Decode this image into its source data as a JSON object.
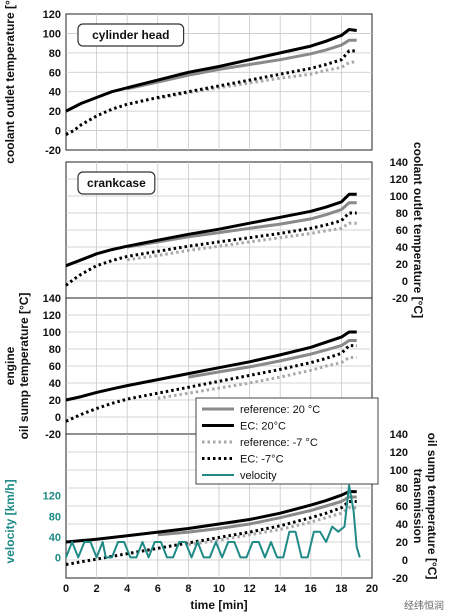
{
  "chart_data": {
    "type": "line",
    "xlabel": "time [min]",
    "xlim": [
      0,
      20
    ],
    "xticks": [
      0,
      2,
      4,
      6,
      8,
      10,
      12,
      14,
      16,
      18,
      20
    ],
    "legend": {
      "placement": "inside-right",
      "entries": [
        "reference: 20 °C",
        "EC: 20°C",
        "reference: -7 °C",
        "EC: -7°C",
        "velocity"
      ]
    },
    "panels": [
      {
        "title": "cylinder head",
        "ylabel": "coolant outlet temperature [°",
        "ylabel_side": "left",
        "ylim": [
          -20,
          120
        ],
        "yticks": [
          -20,
          0,
          20,
          40,
          60,
          80,
          100,
          120
        ],
        "series": [
          {
            "name": "EC: 20°C",
            "style": "black-solid",
            "x": [
              0,
              1,
              2,
              3,
              4,
              6,
              8,
              10,
              12,
              14,
              16,
              17,
              18,
              18.5,
              19
            ],
            "y": [
              20,
              28,
              34,
              40,
              44,
              52,
              60,
              66,
              73,
              80,
              87,
              92,
              98,
              104,
              103
            ]
          },
          {
            "name": "reference: 20 °C",
            "style": "gray-solid",
            "x": [
              4,
              6,
              8,
              10,
              12,
              14,
              16,
              17,
              18,
              18.5,
              19
            ],
            "y": [
              43,
              50,
              57,
              63,
              68,
              73,
              79,
              83,
              88,
              93,
              93
            ]
          },
          {
            "name": "EC: -7°C",
            "style": "black-dotted",
            "x": [
              0,
              0.5,
              1,
              2,
              3,
              4,
              6,
              8,
              10,
              12,
              14,
              16,
              17,
              18,
              18.5,
              19
            ],
            "y": [
              -4,
              0,
              6,
              15,
              22,
              27,
              34,
              40,
              46,
              52,
              58,
              64,
              68,
              73,
              82,
              82
            ]
          },
          {
            "name": "reference: -7 °C",
            "style": "gray-dotted",
            "x": [
              6,
              8,
              10,
              12,
              14,
              16,
              17,
              18,
              18.5,
              19
            ],
            "y": [
              33,
              39,
              44,
              49,
              54,
              58,
              62,
              65,
              70,
              71
            ]
          }
        ]
      },
      {
        "title": "crankcase",
        "ylabel": "coolant outlet temperature [°C]",
        "ylabel_side": "right",
        "ylim": [
          -20,
          140
        ],
        "yticks": [
          -20,
          0,
          20,
          40,
          60,
          80,
          100,
          120,
          140
        ],
        "series": [
          {
            "name": "EC: 20°C",
            "style": "black-solid",
            "x": [
              0,
              1,
              2,
              3,
              4,
              6,
              8,
              10,
              12,
              14,
              16,
              17,
              18,
              18.5,
              19
            ],
            "y": [
              18,
              25,
              32,
              37,
              41,
              48,
              55,
              61,
              68,
              75,
              82,
              87,
              93,
              102,
              102
            ]
          },
          {
            "name": "reference: 20 °C",
            "style": "gray-solid",
            "x": [
              4,
              6,
              8,
              10,
              12,
              14,
              16,
              17,
              18,
              18.5,
              19
            ],
            "y": [
              40,
              46,
              52,
              57,
              62,
              67,
              73,
              78,
              84,
              92,
              92
            ]
          },
          {
            "name": "EC: -7°C",
            "style": "black-dotted",
            "x": [
              0,
              0.5,
              1,
              2,
              3,
              4,
              6,
              8,
              10,
              12,
              14,
              16,
              17,
              18,
              18.5,
              19
            ],
            "y": [
              -5,
              2,
              8,
              18,
              24,
              29,
              35,
              41,
              46,
              51,
              56,
              62,
              66,
              71,
              80,
              80
            ]
          },
          {
            "name": "reference: -7 °C",
            "style": "gray-dotted",
            "x": [
              4,
              6,
              8,
              10,
              12,
              14,
              16,
              17,
              18,
              18.5,
              19
            ],
            "y": [
              25,
              30,
              36,
              41,
              46,
              51,
              56,
              59,
              62,
              68,
              68
            ]
          }
        ]
      },
      {
        "title": "",
        "ylabel": "engine\noil sump temperature [°C]",
        "ylabel_side": "left",
        "ylim": [
          -20,
          140
        ],
        "yticks": [
          -20,
          0,
          20,
          40,
          60,
          80,
          100,
          120,
          140
        ],
        "series": [
          {
            "name": "EC: 20°C",
            "style": "black-solid",
            "x": [
              0,
              1,
              2,
              3,
              4,
              6,
              8,
              10,
              12,
              14,
              16,
              17,
              18,
              18.5,
              19
            ],
            "y": [
              20,
              24,
              29,
              33,
              37,
              44,
              51,
              58,
              65,
              73,
              82,
              88,
              94,
              100,
              100
            ]
          },
          {
            "name": "reference: 20 °C",
            "style": "gray-solid",
            "x": [
              8,
              10,
              12,
              14,
              16,
              17,
              18,
              18.5,
              19
            ],
            "y": [
              47,
              53,
              59,
              66,
              74,
              79,
              84,
              90,
              90
            ]
          },
          {
            "name": "EC: -7°C",
            "style": "black-dotted",
            "x": [
              0,
              1,
              2,
              3,
              4,
              6,
              8,
              10,
              12,
              14,
              16,
              17,
              18,
              18.5,
              19
            ],
            "y": [
              -5,
              3,
              10,
              16,
              21,
              28,
              35,
              42,
              49,
              56,
              64,
              69,
              75,
              84,
              84
            ]
          },
          {
            "name": "reference: -7 °C",
            "style": "gray-dotted",
            "x": [
              6,
              8,
              10,
              12,
              14,
              16,
              17,
              18,
              18.5,
              19
            ],
            "y": [
              22,
              28,
              34,
              40,
              47,
              55,
              60,
              64,
              70,
              70
            ]
          }
        ]
      },
      {
        "title": "",
        "ylabel": "transmission\noil sump temperature [°C]",
        "ylabel_side": "right",
        "ylim": [
          -20,
          140
        ],
        "yticks": [
          -20,
          0,
          20,
          40,
          60,
          80,
          100,
          120,
          140
        ],
        "series": [
          {
            "name": "EC: 20°C",
            "style": "black-solid",
            "x": [
              0,
              2,
              4,
              6,
              8,
              10,
              12,
              14,
              16,
              17,
              18,
              18.5,
              19
            ],
            "y": [
              20,
              23,
              27,
              31,
              35,
              40,
              45,
              52,
              61,
              66,
              72,
              76,
              76
            ]
          },
          {
            "name": "reference: 20 °C",
            "style": "gray-solid",
            "x": [
              6,
              8,
              10,
              12,
              14,
              16,
              17,
              18,
              18.5,
              19
            ],
            "y": [
              28,
              31,
              35,
              40,
              47,
              55,
              60,
              65,
              70,
              70
            ]
          },
          {
            "name": "EC: -7°C",
            "style": "black-dotted",
            "x": [
              0,
              2,
              4,
              6,
              8,
              10,
              12,
              14,
              16,
              17,
              18,
              18.5,
              19
            ],
            "y": [
              -5,
              1,
              7,
              13,
              19,
              25,
              31,
              38,
              47,
              52,
              58,
              65,
              65
            ]
          },
          {
            "name": "reference: -7 °C",
            "style": "gray-dotted",
            "x": [
              8,
              10,
              12,
              14,
              16,
              17,
              18,
              18.5,
              19
            ],
            "y": [
              17,
              22,
              28,
              34,
              42,
              47,
              52,
              58,
              58
            ]
          }
        ],
        "secondary_axis": {
          "ylabel": "velocity [km/h]",
          "side": "left",
          "ylim": [
            -40,
            240
          ],
          "yticks": [
            0,
            40,
            80,
            120
          ],
          "series": [
            {
              "name": "velocity",
              "style": "teal-solid",
              "x": [
                0,
                0.4,
                0.8,
                1.2,
                1.6,
                2.0,
                2.4,
                2.6,
                3.0,
                3.4,
                3.8,
                4.2,
                4.6,
                5.0,
                5.4,
                5.8,
                6.2,
                6.6,
                7.0,
                7.4,
                7.8,
                8.2,
                8.6,
                9.0,
                9.4,
                9.8,
                10.2,
                10.6,
                11.0,
                11.4,
                11.8,
                12.2,
                12.6,
                13.0,
                13.4,
                13.8,
                14.2,
                14.6,
                15.0,
                15.4,
                15.8,
                16.2,
                16.6,
                17.0,
                17.4,
                17.8,
                18.2,
                18.5,
                18.8,
                19.0,
                19.2
              ],
              "y": [
                0,
                30,
                0,
                30,
                30,
                0,
                30,
                0,
                0,
                30,
                30,
                0,
                0,
                30,
                0,
                30,
                30,
                0,
                0,
                30,
                30,
                0,
                30,
                0,
                0,
                30,
                0,
                30,
                30,
                0,
                0,
                30,
                30,
                0,
                30,
                0,
                0,
                50,
                50,
                0,
                0,
                50,
                50,
                30,
                60,
                50,
                60,
                140,
                90,
                20,
                0
              ]
            }
          ]
        }
      }
    ]
  }
}
